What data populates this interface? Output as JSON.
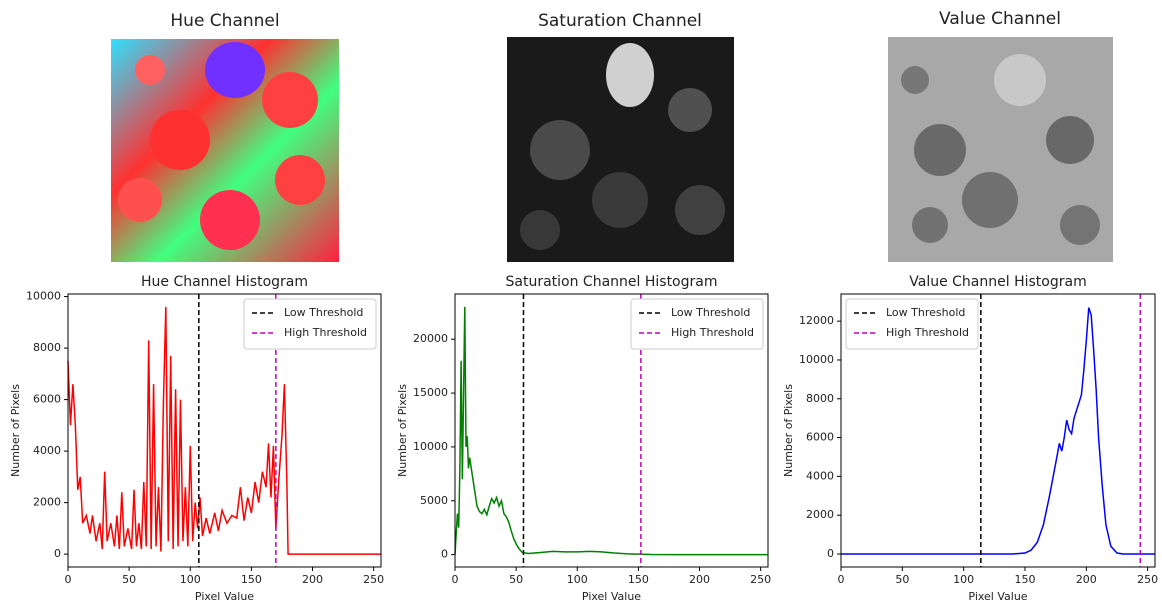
{
  "images": [
    {
      "title": "Hue Channel"
    },
    {
      "title": "Saturation Channel"
    },
    {
      "title": "Value Channel"
    }
  ],
  "chart_data": [
    {
      "type": "line",
      "title": "Hue Channel Histogram",
      "xlabel": "Pixel Value",
      "ylabel": "Number of Pixels",
      "color": "#ff0000",
      "x": [
        0,
        2,
        4,
        6,
        8,
        10,
        12,
        15,
        18,
        20,
        23,
        26,
        28,
        30,
        32,
        35,
        38,
        40,
        42,
        44,
        46,
        49,
        52,
        54,
        56,
        58,
        60,
        62,
        64,
        66,
        68,
        70,
        72,
        74,
        76,
        78,
        80,
        82,
        84,
        86,
        88,
        90,
        92,
        94,
        96,
        98,
        100,
        102,
        104,
        106,
        108,
        110,
        113,
        116,
        120,
        123,
        126,
        130,
        134,
        138,
        141,
        144,
        147,
        150,
        153,
        156,
        159,
        162,
        164,
        166,
        168,
        170,
        172,
        175,
        177,
        179,
        180,
        256
      ],
      "values": [
        7500,
        5000,
        6600,
        5000,
        2500,
        3000,
        1200,
        1500,
        800,
        1500,
        500,
        1200,
        200,
        3200,
        500,
        1200,
        300,
        1500,
        200,
        2400,
        300,
        1000,
        200,
        2500,
        300,
        1200,
        200,
        2800,
        300,
        8300,
        200,
        6600,
        300,
        2600,
        100,
        5800,
        9600,
        500,
        7700,
        200,
        6400,
        300,
        6000,
        500,
        2600,
        300,
        4200,
        500,
        2000,
        1000,
        2200,
        700,
        1400,
        800,
        1600,
        900,
        1700,
        1200,
        1500,
        1400,
        2600,
        1300,
        2200,
        1600,
        2800,
        2000,
        3200,
        2600,
        4300,
        2200,
        4200,
        1000,
        2600,
        4600,
        6600,
        2800,
        0,
        0
      ],
      "xlim": [
        0,
        256
      ],
      "ylim": [
        -500,
        10100
      ],
      "xticks": [
        0,
        50,
        100,
        150,
        200,
        250
      ],
      "yticks": [
        0,
        2000,
        4000,
        6000,
        8000,
        10000
      ],
      "thresholds": [
        {
          "name": "Low Threshold",
          "color": "#000000",
          "x": 107
        },
        {
          "name": "High Threshold",
          "color": "#c000c0",
          "x": 170
        }
      ],
      "legend": "upper right"
    },
    {
      "type": "line",
      "title": "Saturation Channel Histogram",
      "xlabel": "Pixel Value",
      "ylabel": "Number of Pixels",
      "color": "#008000",
      "x": [
        0,
        1,
        2,
        3,
        4,
        5,
        6,
        7,
        8,
        9,
        10,
        11,
        12,
        14,
        16,
        18,
        20,
        22,
        24,
        26,
        28,
        30,
        32,
        34,
        36,
        38,
        40,
        42,
        44,
        46,
        48,
        50,
        52,
        55,
        60,
        70,
        80,
        90,
        100,
        110,
        120,
        130,
        140,
        150,
        160,
        180,
        256
      ],
      "values": [
        0,
        2000,
        3800,
        2500,
        8000,
        18000,
        7000,
        15000,
        23000,
        10000,
        11000,
        8000,
        9000,
        7500,
        6000,
        4500,
        4000,
        3800,
        4200,
        3700,
        4500,
        5200,
        4800,
        5300,
        4500,
        5000,
        3800,
        3500,
        3000,
        2200,
        1500,
        1000,
        600,
        200,
        100,
        200,
        300,
        250,
        250,
        300,
        250,
        150,
        80,
        40,
        10,
        0,
        0
      ],
      "xlim": [
        0,
        256
      ],
      "ylim": [
        -1150,
        24200
      ],
      "xticks": [
        0,
        50,
        100,
        150,
        200,
        250
      ],
      "yticks": [
        0,
        5000,
        10000,
        15000,
        20000
      ],
      "thresholds": [
        {
          "name": "Low Threshold",
          "color": "#000000",
          "x": 56
        },
        {
          "name": "High Threshold",
          "color": "#c000c0",
          "x": 152
        }
      ],
      "legend": "upper right"
    },
    {
      "type": "line",
      "title": "Value Channel Histogram",
      "xlabel": "Pixel Value",
      "ylabel": "Number of Pixels",
      "color": "#0000ff",
      "x": [
        0,
        140,
        150,
        155,
        160,
        165,
        170,
        173,
        176,
        178,
        180,
        182,
        184,
        186,
        188,
        190,
        193,
        196,
        198,
        200,
        202,
        204,
        206,
        208,
        210,
        213,
        216,
        220,
        225,
        230,
        256
      ],
      "values": [
        0,
        0,
        50,
        200,
        600,
        1500,
        3000,
        4000,
        5000,
        5700,
        5300,
        6000,
        6900,
        6400,
        6200,
        7000,
        7600,
        8200,
        9500,
        11000,
        12700,
        12300,
        10500,
        8500,
        6000,
        3500,
        1500,
        400,
        50,
        0,
        0
      ],
      "xlim": [
        0,
        256
      ],
      "ylim": [
        -670,
        13400
      ],
      "xticks": [
        0,
        50,
        100,
        150,
        200,
        250
      ],
      "yticks": [
        0,
        2000,
        4000,
        6000,
        8000,
        10000,
        12000
      ],
      "thresholds": [
        {
          "name": "Low Threshold",
          "color": "#000000",
          "x": 114
        },
        {
          "name": "High Threshold",
          "color": "#c000c0",
          "x": 244
        }
      ],
      "legend": "upper left"
    }
  ]
}
